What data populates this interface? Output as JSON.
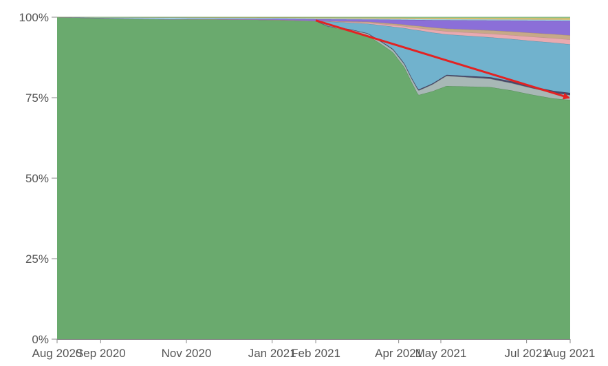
{
  "chart_data": {
    "type": "area",
    "stacked": true,
    "normalized_percent": true,
    "title": "",
    "xlabel": "",
    "ylabel": "",
    "ylim": [
      0,
      100
    ],
    "y_ticks": [
      "0%",
      "25%",
      "50%",
      "75%",
      "100%"
    ],
    "x_ticks": [
      "Aug 2020",
      "Sep 2020",
      "Nov 2020",
      "Jan 2021",
      "Feb 2021",
      "Apr 2021",
      "May 2021",
      "Jul 2021",
      "Aug 2021"
    ],
    "x_tick_dates": [
      "2020-08-01",
      "2020-09-01",
      "2020-11-01",
      "2021-01-01",
      "2021-02-01",
      "2021-04-01",
      "2021-05-01",
      "2021-07-01",
      "2021-08-01"
    ],
    "x_range": [
      "2020-08-01",
      "2021-08-01"
    ],
    "grid": false,
    "legend": "none",
    "series": [
      {
        "color": "#6aaa6e",
        "x": [
          "2020-08-01",
          "2020-10-20",
          "2021-02-01",
          "2021-02-10",
          "2021-02-25",
          "2021-03-10",
          "2021-03-20",
          "2021-03-28",
          "2021-04-05",
          "2021-04-10",
          "2021-04-15",
          "2021-04-25",
          "2021-05-05",
          "2021-05-20",
          "2021-06-05",
          "2021-06-20",
          "2021-07-05",
          "2021-07-20",
          "2021-08-01"
        ],
        "values": [
          100,
          99.5,
          99,
          98,
          97.5,
          96,
          94,
          90,
          85,
          78,
          74,
          73,
          75,
          75.5,
          76,
          76.5,
          75.5,
          75,
          74
        ]
      },
      {
        "color": "#a8b8b6",
        "x": [
          "2020-08-01",
          "2021-02-01",
          "2021-04-10",
          "2021-04-25",
          "2021-05-05",
          "2021-06-05",
          "2021-07-05",
          "2021-08-01"
        ],
        "values": [
          0,
          0,
          1,
          2,
          3,
          2.5,
          2,
          1.5
        ]
      },
      {
        "color": "#4a4a6a",
        "x": [
          "2020-08-01",
          "2021-02-01",
          "2021-04-10",
          "2021-05-05",
          "2021-06-05",
          "2021-07-05",
          "2021-08-01"
        ],
        "values": [
          0,
          0,
          0.3,
          0.3,
          0.5,
          0.6,
          0.7
        ]
      },
      {
        "color": "#71b2cd",
        "x": [
          "2020-08-01",
          "2021-02-01",
          "2021-02-10",
          "2021-02-25",
          "2021-03-10",
          "2021-03-28",
          "2021-04-05",
          "2021-04-15",
          "2021-05-05",
          "2021-05-20",
          "2021-06-05",
          "2021-06-20",
          "2021-07-05",
          "2021-07-20",
          "2021-08-01"
        ],
        "values": [
          0,
          0,
          1.5,
          2,
          3,
          7,
          11,
          18,
          12,
          12,
          12,
          13,
          14,
          15,
          15
        ]
      },
      {
        "color": "#e9aab0",
        "x": [
          "2020-08-01",
          "2021-02-01",
          "2021-04-05",
          "2021-05-05",
          "2021-06-05",
          "2021-07-05",
          "2021-08-01"
        ],
        "values": [
          0,
          0,
          0.6,
          0.9,
          1.1,
          1.3,
          1.5
        ]
      },
      {
        "color": "#c7a988",
        "x": [
          "2020-08-01",
          "2021-02-01",
          "2021-04-05",
          "2021-05-05",
          "2021-06-05",
          "2021-07-05",
          "2021-08-01"
        ],
        "values": [
          0,
          0,
          0.5,
          0.8,
          1,
          1.2,
          1.3
        ]
      },
      {
        "color": "#8b6fd8",
        "x": [
          "2020-08-01",
          "2020-10-20",
          "2021-01-01",
          "2021-02-01",
          "2021-03-10",
          "2021-04-05",
          "2021-05-05",
          "2021-06-05",
          "2021-07-05",
          "2021-08-01"
        ],
        "values": [
          0,
          0,
          0.3,
          0.5,
          0.7,
          1.5,
          2.5,
          3,
          3.8,
          4.5
        ]
      },
      {
        "color": "#a6d8e8",
        "x": [
          "2020-08-01",
          "2020-10-20",
          "2020-11-01",
          "2021-01-01",
          "2021-02-01",
          "2021-04-05",
          "2021-08-01"
        ],
        "values": [
          0,
          0.5,
          0.4,
          0.3,
          0.3,
          0.3,
          0.3
        ]
      },
      {
        "color": "#e8c86e",
        "x": [
          "2020-08-01",
          "2021-01-01",
          "2021-02-01",
          "2021-04-05",
          "2021-06-05",
          "2021-08-01"
        ],
        "values": [
          0,
          0.1,
          0.2,
          0.3,
          0.4,
          0.5
        ]
      },
      {
        "color": "#9bcf8f",
        "x": [
          "2020-08-01",
          "2021-01-01",
          "2021-04-05",
          "2021-08-01"
        ],
        "values": [
          0,
          0.1,
          0.2,
          0.3
        ]
      }
    ],
    "annotations": [
      {
        "type": "arrow",
        "color": "#e32222",
        "from": {
          "x": "2021-02-01",
          "y": 99
        },
        "to": {
          "x": "2021-08-01",
          "y": 75
        }
      }
    ]
  }
}
